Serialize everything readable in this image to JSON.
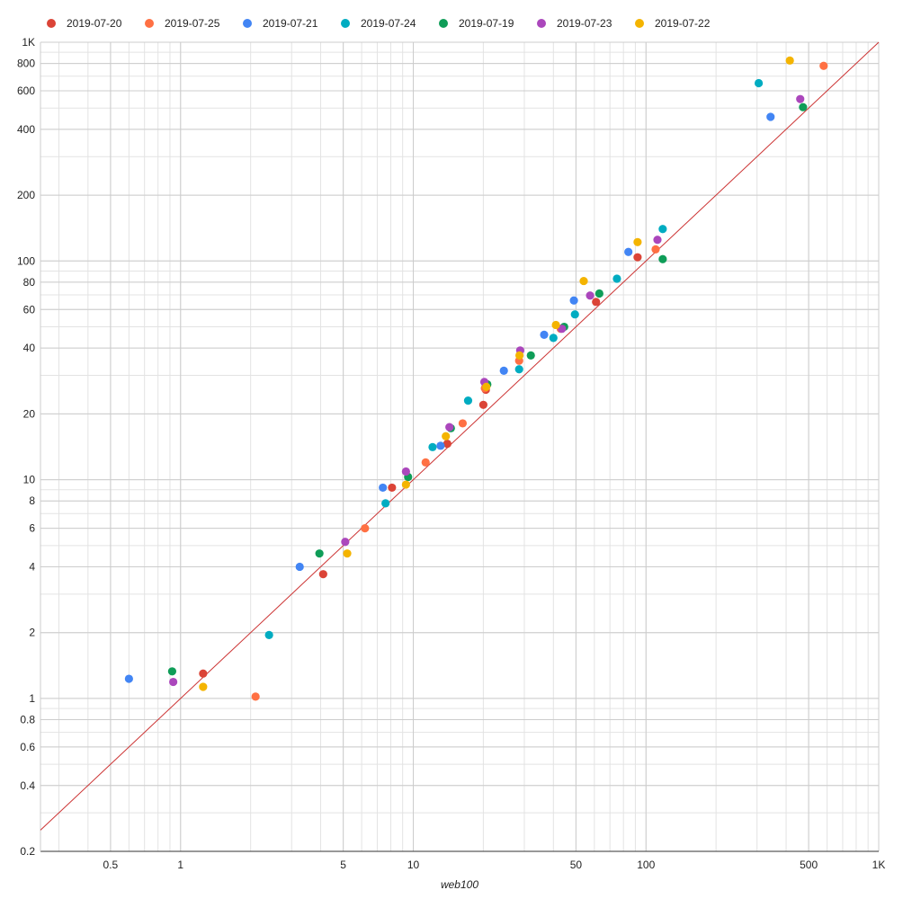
{
  "chart_data": {
    "type": "scatter",
    "title": "",
    "xlabel": "web100",
    "ylabel": "",
    "x_scale": "log",
    "y_scale": "log",
    "xlim": [
      0.25,
      1000
    ],
    "ylim": [
      0.2,
      1000
    ],
    "grid": true,
    "legend_position": "top",
    "reference_line": "y = x",
    "reference_line_color": "#cc3333",
    "x_ticks": [
      {
        "value": 0.5,
        "label": "0.5"
      },
      {
        "value": 1,
        "label": "1"
      },
      {
        "value": 5,
        "label": "5"
      },
      {
        "value": 10,
        "label": "10"
      },
      {
        "value": 50,
        "label": "50"
      },
      {
        "value": 100,
        "label": "100"
      },
      {
        "value": 500,
        "label": "500"
      },
      {
        "value": 1000,
        "label": "1K"
      }
    ],
    "y_ticks": [
      {
        "value": 0.2,
        "label": "0.2"
      },
      {
        "value": 0.4,
        "label": "0.4"
      },
      {
        "value": 0.6,
        "label": "0.6"
      },
      {
        "value": 0.8,
        "label": "0.8"
      },
      {
        "value": 1,
        "label": "1"
      },
      {
        "value": 2,
        "label": "2"
      },
      {
        "value": 4,
        "label": "4"
      },
      {
        "value": 6,
        "label": "6"
      },
      {
        "value": 8,
        "label": "8"
      },
      {
        "value": 10,
        "label": "10"
      },
      {
        "value": 20,
        "label": "20"
      },
      {
        "value": 40,
        "label": "40"
      },
      {
        "value": 60,
        "label": "60"
      },
      {
        "value": 80,
        "label": "80"
      },
      {
        "value": 100,
        "label": "100"
      },
      {
        "value": 200,
        "label": "200"
      },
      {
        "value": 400,
        "label": "400"
      },
      {
        "value": 600,
        "label": "600"
      },
      {
        "value": 800,
        "label": "800"
      },
      {
        "value": 1000,
        "label": "1K"
      }
    ],
    "series": [
      {
        "name": "2019-07-20",
        "color": "#db4437",
        "points": [
          [
            1.25,
            1.3
          ],
          [
            4.1,
            3.7
          ],
          [
            8.1,
            9.2
          ],
          [
            14,
            14.6
          ],
          [
            20,
            22
          ],
          [
            20.5,
            25.8
          ],
          [
            61,
            65
          ],
          [
            92,
            104
          ]
        ]
      },
      {
        "name": "2019-07-25",
        "color": "#ff7043",
        "points": [
          [
            2.1,
            1.02
          ],
          [
            6.2,
            6.0
          ],
          [
            11.3,
            12
          ],
          [
            16.3,
            18.1
          ],
          [
            20.3,
            26.2
          ],
          [
            28.5,
            35
          ],
          [
            43,
            49
          ],
          [
            110,
            113
          ],
          [
            580,
            780
          ]
        ]
      },
      {
        "name": "2019-07-21",
        "color": "#4285f4",
        "points": [
          [
            0.6,
            1.23
          ],
          [
            3.25,
            4.0
          ],
          [
            7.4,
            9.2
          ],
          [
            13.1,
            14.3
          ],
          [
            24.5,
            31.5
          ],
          [
            36.5,
            46
          ],
          [
            49,
            66
          ],
          [
            84,
            110
          ],
          [
            343,
            456
          ]
        ]
      },
      {
        "name": "2019-07-24",
        "color": "#00acc1",
        "points": [
          [
            2.4,
            1.95
          ],
          [
            7.6,
            7.8
          ],
          [
            12.1,
            14.1
          ],
          [
            17.2,
            23
          ],
          [
            28.5,
            32
          ],
          [
            40,
            44.5
          ],
          [
            49.5,
            57
          ],
          [
            75,
            83
          ],
          [
            118,
            140
          ],
          [
            305,
            650
          ]
        ]
      },
      {
        "name": "2019-07-19",
        "color": "#0f9d58",
        "points": [
          [
            0.92,
            1.33
          ],
          [
            3.95,
            4.6
          ],
          [
            9.5,
            10.3
          ],
          [
            14.5,
            17.2
          ],
          [
            20.8,
            27.3
          ],
          [
            32,
            37
          ],
          [
            44.5,
            50
          ],
          [
            63,
            71
          ],
          [
            118,
            102
          ],
          [
            473,
            505
          ]
        ]
      },
      {
        "name": "2019-07-23",
        "color": "#ab47bc",
        "points": [
          [
            0.93,
            1.19
          ],
          [
            5.1,
            5.2
          ],
          [
            9.3,
            10.9
          ],
          [
            14.3,
            17.4
          ],
          [
            20.2,
            28
          ],
          [
            28.8,
            39
          ],
          [
            43.5,
            49
          ],
          [
            57.5,
            69.5
          ],
          [
            112,
            125
          ],
          [
            460,
            550
          ]
        ]
      },
      {
        "name": "2019-07-22",
        "color": "#f4b400",
        "points": [
          [
            1.25,
            1.13
          ],
          [
            5.2,
            4.6
          ],
          [
            9.3,
            9.5
          ],
          [
            13.8,
            15.8
          ],
          [
            20.6,
            26.6
          ],
          [
            28.6,
            37
          ],
          [
            41,
            51
          ],
          [
            54,
            81
          ],
          [
            92,
            122
          ],
          [
            415,
            825
          ]
        ]
      }
    ]
  }
}
